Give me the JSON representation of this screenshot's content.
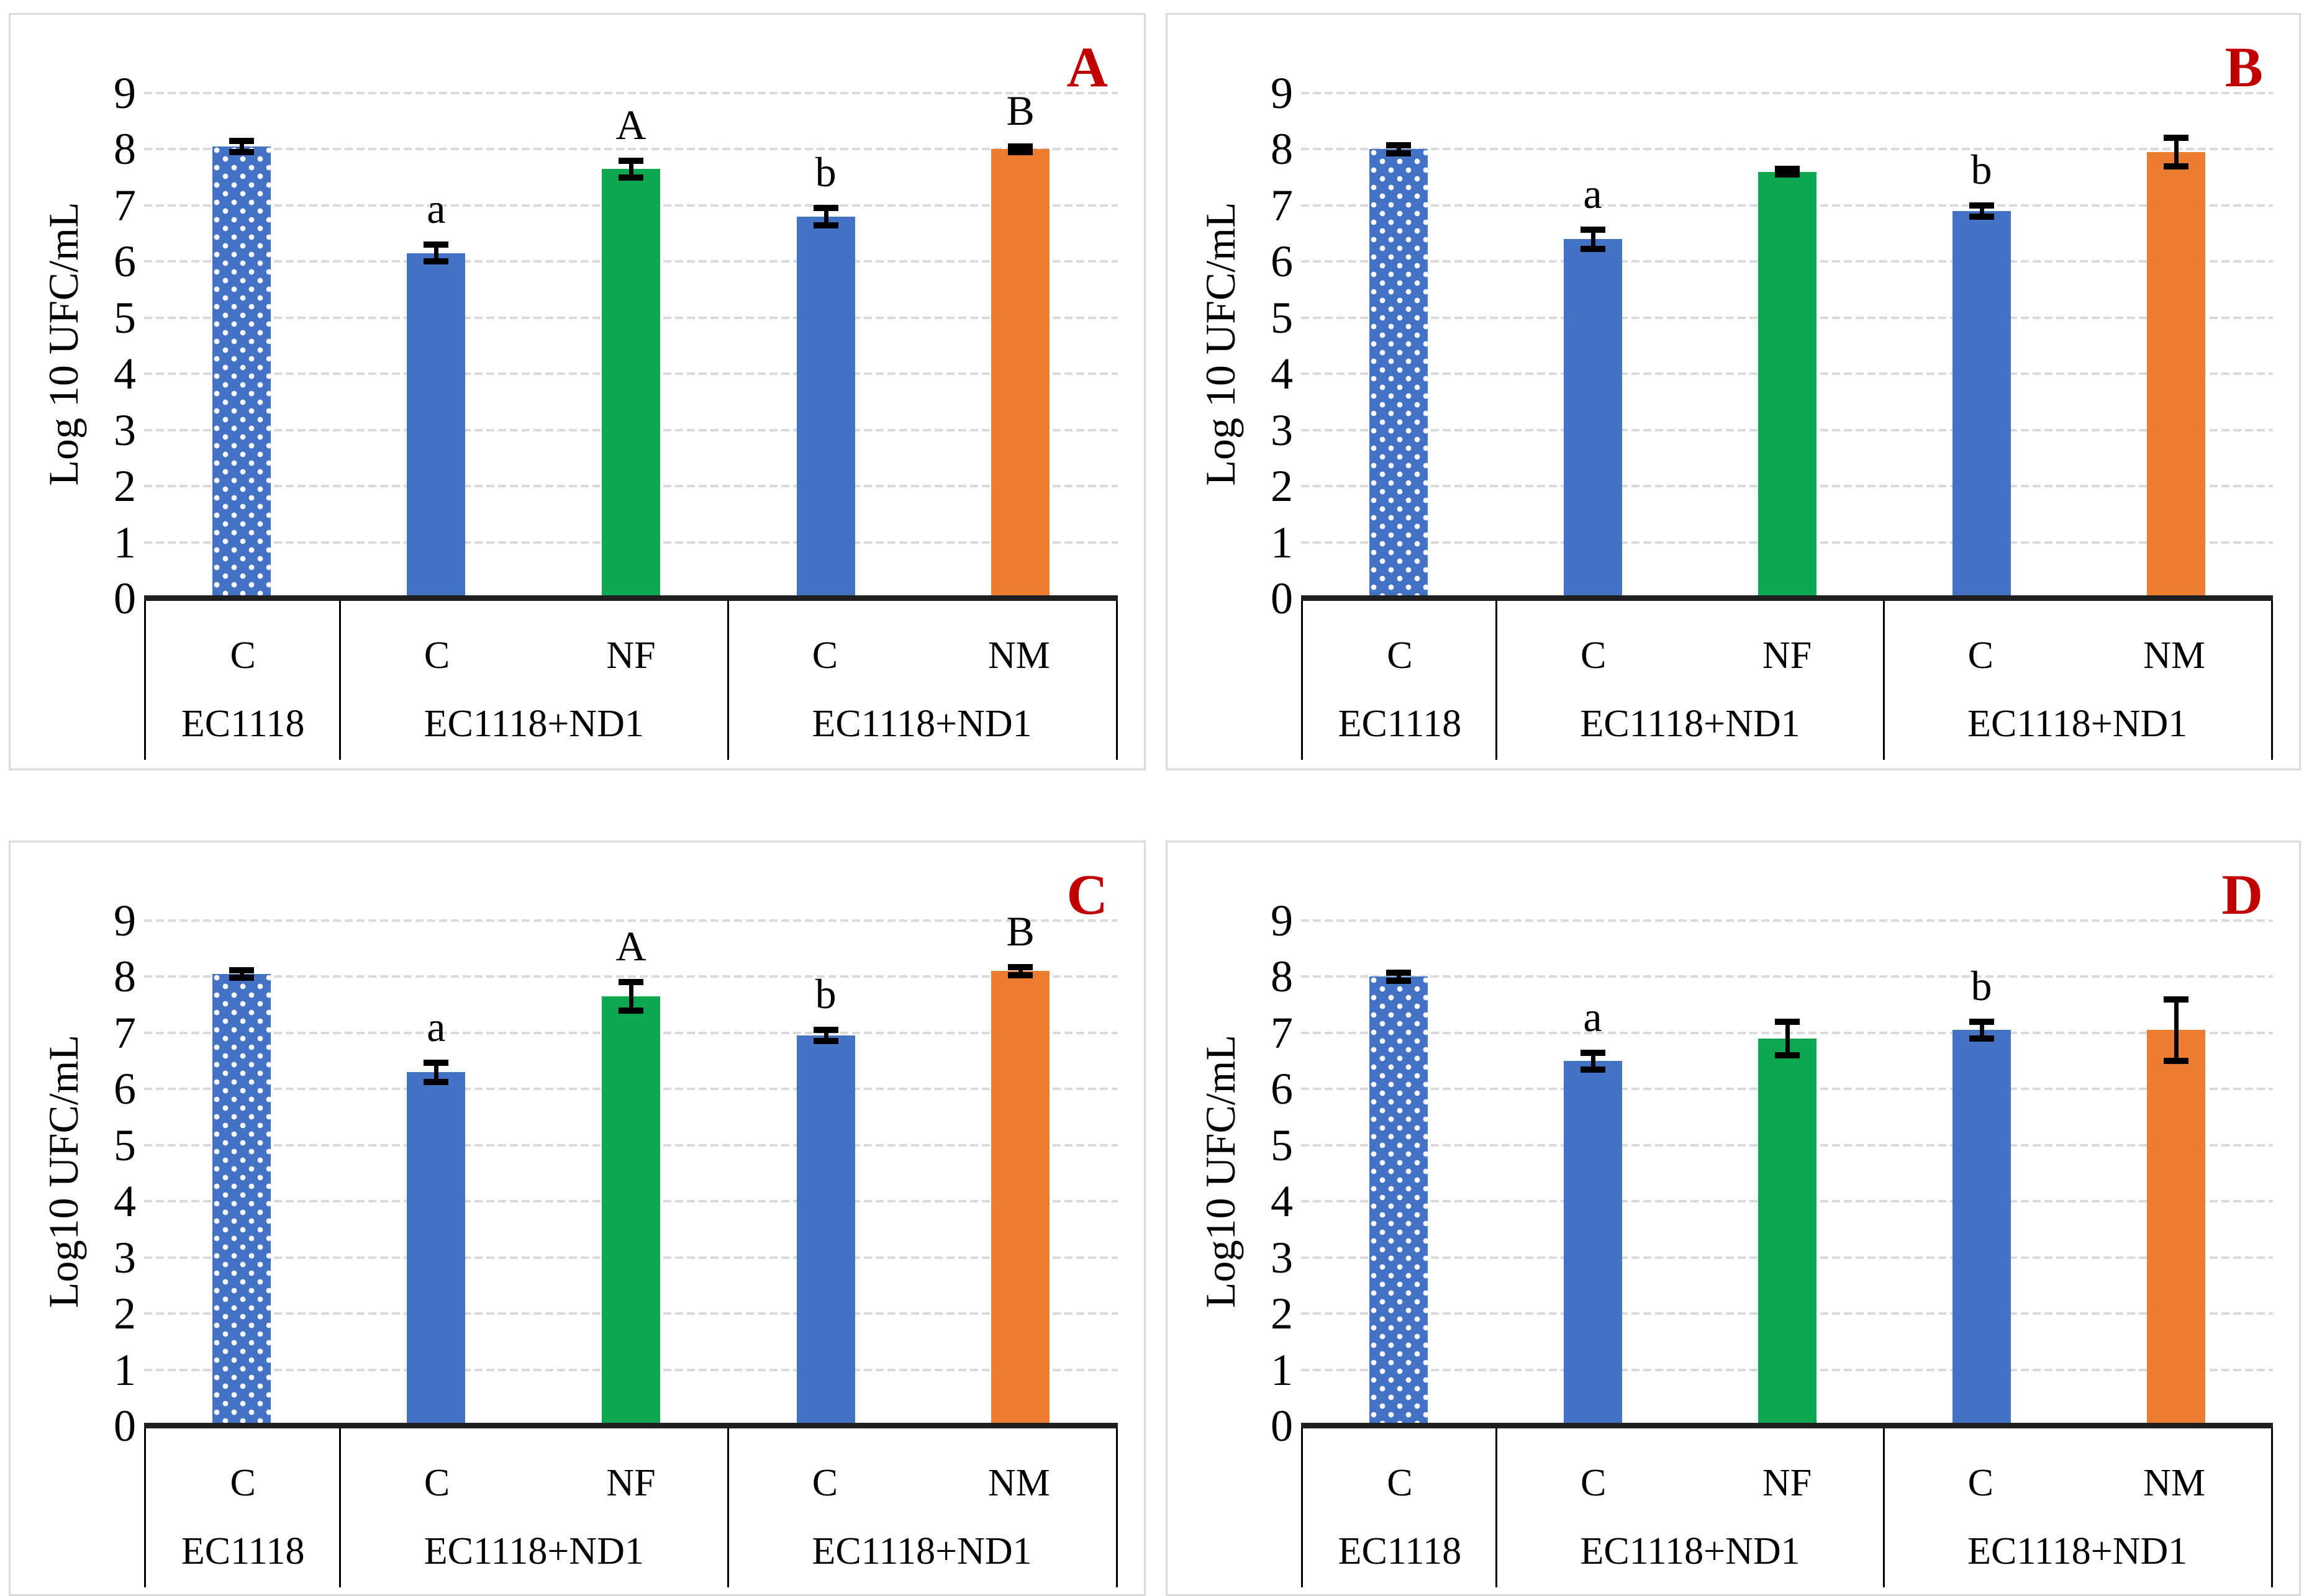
{
  "figure_title": "",
  "colors": {
    "blue": "#4472C4",
    "green": "#0CA750",
    "orange": "#ED7D31",
    "panel_letter_red": "#C00000",
    "gridline": "#D9D9D9",
    "axis_line": "#1F1F1F",
    "error_bar": "#000000"
  },
  "chart_data": [
    {
      "type": "bar",
      "panel_label": "A",
      "ylabel": "Log 10 UFC/mL",
      "ylim": [
        0,
        9
      ],
      "yticks": [
        0,
        1,
        2,
        3,
        4,
        5,
        6,
        7,
        8,
        9
      ],
      "grid": true,
      "legend": "none",
      "groups": [
        {
          "strain": "EC1118",
          "bar_indexes": [
            0
          ]
        },
        {
          "strain": "EC1118+ND1",
          "bar_indexes": [
            1,
            2
          ]
        },
        {
          "strain": "EC1118+ND1",
          "bar_indexes": [
            3,
            4
          ]
        }
      ],
      "bars": [
        {
          "label": "C",
          "value": 8.05,
          "error": 0.1,
          "sig": "",
          "color": "blue",
          "pattern": "dots"
        },
        {
          "label": "C",
          "value": 6.15,
          "error": 0.15,
          "sig": "a",
          "color": "blue",
          "pattern": "solid"
        },
        {
          "label": "NF",
          "value": 7.65,
          "error": 0.15,
          "sig": "A",
          "color": "green",
          "pattern": "solid"
        },
        {
          "label": "C",
          "value": 6.8,
          "error": 0.15,
          "sig": "b",
          "color": "blue",
          "pattern": "solid"
        },
        {
          "label": "NM",
          "value": 8.0,
          "error": 0.05,
          "sig": "B",
          "color": "orange",
          "pattern": "solid"
        }
      ]
    },
    {
      "type": "bar",
      "panel_label": "B",
      "ylabel": "Log 10 UFC/mL",
      "ylim": [
        0,
        9
      ],
      "yticks": [
        0,
        1,
        2,
        3,
        4,
        5,
        6,
        7,
        8,
        9
      ],
      "grid": true,
      "legend": "none",
      "groups": [
        {
          "strain": "EC1118",
          "bar_indexes": [
            0
          ]
        },
        {
          "strain": "EC1118+ND1",
          "bar_indexes": [
            1,
            2
          ]
        },
        {
          "strain": "EC1118+ND1",
          "bar_indexes": [
            3,
            4
          ]
        }
      ],
      "bars": [
        {
          "label": "C",
          "value": 8.0,
          "error": 0.07,
          "sig": "",
          "color": "blue",
          "pattern": "dots"
        },
        {
          "label": "C",
          "value": 6.4,
          "error": 0.17,
          "sig": "a",
          "color": "blue",
          "pattern": "solid"
        },
        {
          "label": "NF",
          "value": 7.6,
          "error": 0.05,
          "sig": "",
          "color": "green",
          "pattern": "solid"
        },
        {
          "label": "C",
          "value": 6.9,
          "error": 0.1,
          "sig": "b",
          "color": "blue",
          "pattern": "solid"
        },
        {
          "label": "NM",
          "value": 7.95,
          "error": 0.25,
          "sig": "",
          "color": "orange",
          "pattern": "solid"
        }
      ]
    },
    {
      "type": "bar",
      "panel_label": "C",
      "ylabel": "Log10 UFC/mL",
      "ylim": [
        0,
        9
      ],
      "yticks": [
        0,
        1,
        2,
        3,
        4,
        5,
        6,
        7,
        8,
        9
      ],
      "grid": true,
      "legend": "none",
      "groups": [
        {
          "strain": "EC1118",
          "bar_indexes": [
            0
          ]
        },
        {
          "strain": "EC1118+ND1",
          "bar_indexes": [
            1,
            2
          ]
        },
        {
          "strain": "EC1118+ND1",
          "bar_indexes": [
            3,
            4
          ]
        }
      ],
      "bars": [
        {
          "label": "C",
          "value": 8.05,
          "error": 0.07,
          "sig": "",
          "color": "blue",
          "pattern": "dots"
        },
        {
          "label": "C",
          "value": 6.3,
          "error": 0.17,
          "sig": "a",
          "color": "blue",
          "pattern": "solid"
        },
        {
          "label": "NF",
          "value": 7.65,
          "error": 0.25,
          "sig": "A",
          "color": "green",
          "pattern": "solid"
        },
        {
          "label": "C",
          "value": 6.95,
          "error": 0.1,
          "sig": "b",
          "color": "blue",
          "pattern": "solid"
        },
        {
          "label": "NM",
          "value": 8.1,
          "error": 0.07,
          "sig": "B",
          "color": "orange",
          "pattern": "solid"
        }
      ]
    },
    {
      "type": "bar",
      "panel_label": "D",
      "ylabel": "Log10 UFC/mL",
      "ylim": [
        0,
        9
      ],
      "yticks": [
        0,
        1,
        2,
        3,
        4,
        5,
        6,
        7,
        8,
        9
      ],
      "grid": true,
      "legend": "none",
      "groups": [
        {
          "strain": "EC1118",
          "bar_indexes": [
            0
          ]
        },
        {
          "strain": "EC1118+ND1",
          "bar_indexes": [
            1,
            2
          ]
        },
        {
          "strain": "EC1118+ND1",
          "bar_indexes": [
            3,
            4
          ]
        }
      ],
      "bars": [
        {
          "label": "C",
          "value": 8.0,
          "error": 0.07,
          "sig": "",
          "color": "blue",
          "pattern": "dots"
        },
        {
          "label": "C",
          "value": 6.5,
          "error": 0.15,
          "sig": "a",
          "color": "blue",
          "pattern": "solid"
        },
        {
          "label": "NF",
          "value": 6.9,
          "error": 0.3,
          "sig": "",
          "color": "green",
          "pattern": "solid"
        },
        {
          "label": "C",
          "value": 7.05,
          "error": 0.15,
          "sig": "b",
          "color": "blue",
          "pattern": "solid"
        },
        {
          "label": "NM",
          "value": 7.05,
          "error": 0.55,
          "sig": "",
          "color": "orange",
          "pattern": "solid"
        }
      ]
    }
  ]
}
